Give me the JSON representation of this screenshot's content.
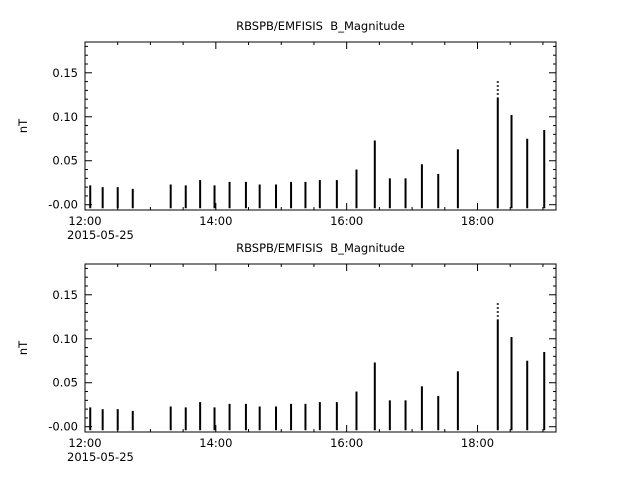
{
  "page": {
    "background": "#ffffff",
    "foreground": "#000000"
  },
  "chart_data": [
    {
      "type": "bar",
      "title": "RBSPB/EMFISIS  B_Magnitude",
      "ylabel": "nT",
      "date_label": "2015-05-25",
      "legend": "none",
      "grid": false,
      "xlim": [
        12.0,
        19.2
      ],
      "ylim": [
        -0.006,
        0.185
      ],
      "bar_base": -0.004,
      "x_minor_step": 0.5,
      "y_minor_step": 0.01,
      "x_ticks": [
        {
          "v": 12,
          "label": "12:00"
        },
        {
          "v": 14,
          "label": "14:00"
        },
        {
          "v": 16,
          "label": "16:00"
        },
        {
          "v": 18,
          "label": "18:00"
        }
      ],
      "y_ticks": [
        {
          "v": 0.0,
          "label": "-0.00"
        },
        {
          "v": 0.05,
          "label": "0.05"
        },
        {
          "v": 0.1,
          "label": "0.10"
        },
        {
          "v": 0.15,
          "label": "0.15"
        }
      ],
      "x": [
        12.08,
        12.27,
        12.5,
        12.73,
        13.31,
        13.54,
        13.76,
        13.98,
        14.21,
        14.46,
        14.67,
        14.92,
        15.15,
        15.37,
        15.59,
        15.85,
        16.15,
        16.43,
        16.66,
        16.9,
        17.15,
        17.4,
        17.7,
        18.31,
        18.52,
        18.76,
        19.02
      ],
      "values": [
        0.022,
        0.02,
        0.02,
        0.018,
        0.023,
        0.022,
        0.028,
        0.022,
        0.026,
        0.026,
        0.023,
        0.023,
        0.026,
        0.026,
        0.028,
        0.028,
        0.04,
        0.073,
        0.03,
        0.03,
        0.046,
        0.035,
        0.063,
        0.122,
        0.102,
        0.075,
        0.085
      ],
      "dotted_peak": {
        "x": 18.31,
        "y0": 0.125,
        "y1": 0.141
      }
    },
    {
      "type": "bar",
      "title": "RBSPB/EMFISIS  B_Magnitude",
      "ylabel": "nT",
      "date_label": "2015-05-25",
      "legend": "none",
      "grid": false,
      "xlim": [
        12.0,
        19.2
      ],
      "ylim": [
        -0.006,
        0.185
      ],
      "bar_base": -0.004,
      "x_minor_step": 0.5,
      "y_minor_step": 0.01,
      "x_ticks": [
        {
          "v": 12,
          "label": "12:00"
        },
        {
          "v": 14,
          "label": "14:00"
        },
        {
          "v": 16,
          "label": "16:00"
        },
        {
          "v": 18,
          "label": "18:00"
        }
      ],
      "y_ticks": [
        {
          "v": 0.0,
          "label": "-0.00"
        },
        {
          "v": 0.05,
          "label": "0.05"
        },
        {
          "v": 0.1,
          "label": "0.10"
        },
        {
          "v": 0.15,
          "label": "0.15"
        }
      ],
      "x": [
        12.08,
        12.27,
        12.5,
        12.73,
        13.31,
        13.54,
        13.76,
        13.98,
        14.21,
        14.46,
        14.67,
        14.92,
        15.15,
        15.37,
        15.59,
        15.85,
        16.15,
        16.43,
        16.66,
        16.9,
        17.15,
        17.4,
        17.7,
        18.31,
        18.52,
        18.76,
        19.02
      ],
      "values": [
        0.022,
        0.02,
        0.02,
        0.018,
        0.023,
        0.022,
        0.028,
        0.022,
        0.026,
        0.026,
        0.023,
        0.023,
        0.026,
        0.026,
        0.028,
        0.028,
        0.04,
        0.073,
        0.03,
        0.03,
        0.046,
        0.035,
        0.063,
        0.122,
        0.102,
        0.075,
        0.085
      ],
      "dotted_peak": {
        "x": 18.31,
        "y0": 0.125,
        "y1": 0.141
      }
    }
  ]
}
